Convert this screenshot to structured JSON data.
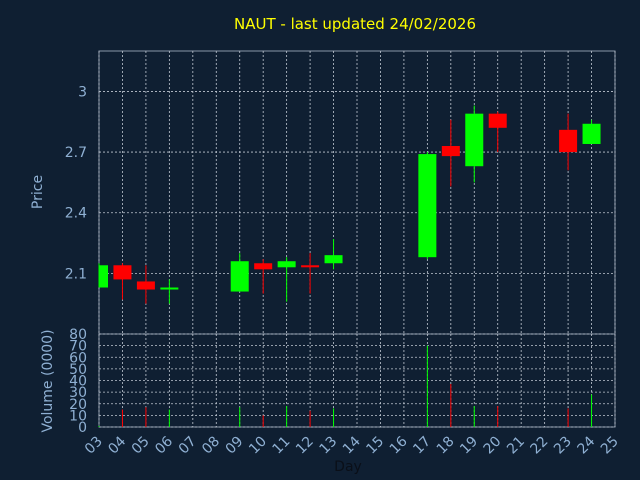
{
  "colors": {
    "background": "#0f1f32",
    "frame": "#8a97a8",
    "grid": "#c0c8d2",
    "title": "#ffff00",
    "axis_text": "#8fb0d3",
    "up": "#00ff00",
    "down": "#ff0000"
  },
  "chart_data": [
    {
      "type": "candlestick",
      "title": "NAUT - last updated 24/02/2026",
      "ylabel": "Price",
      "ylim": [
        1.8,
        3.2
      ],
      "yticks": [
        "2.1",
        "2.4",
        "2.7",
        "3"
      ],
      "grid": true,
      "x": [
        "03",
        "04",
        "05",
        "06",
        "07",
        "08",
        "09",
        "10",
        "11",
        "12",
        "13",
        "14",
        "15",
        "16",
        "17",
        "18",
        "19",
        "20",
        "21",
        "22",
        "23",
        "24",
        "25"
      ],
      "candles": [
        {
          "day": "03",
          "open": 2.03,
          "high": 2.15,
          "low": 2.03,
          "close": 2.14
        },
        {
          "day": "04",
          "open": 2.14,
          "high": 2.15,
          "low": 1.97,
          "close": 2.07
        },
        {
          "day": "05",
          "open": 2.06,
          "high": 2.14,
          "low": 1.95,
          "close": 2.02
        },
        {
          "day": "06",
          "open": 2.02,
          "high": 2.07,
          "low": 1.95,
          "close": 2.03
        },
        {
          "day": "09",
          "open": 2.01,
          "high": 2.2,
          "low": 2.01,
          "close": 2.16
        },
        {
          "day": "10",
          "open": 2.15,
          "high": 2.17,
          "low": 2.0,
          "close": 2.12
        },
        {
          "day": "11",
          "open": 2.13,
          "high": 2.18,
          "low": 1.96,
          "close": 2.16
        },
        {
          "day": "12",
          "open": 2.14,
          "high": 2.2,
          "low": 2.0,
          "close": 2.13
        },
        {
          "day": "13",
          "open": 2.15,
          "high": 2.27,
          "low": 2.12,
          "close": 2.19
        },
        {
          "day": "17",
          "open": 2.18,
          "high": 2.7,
          "low": 2.17,
          "close": 2.69
        },
        {
          "day": "18",
          "open": 2.73,
          "high": 2.86,
          "low": 2.53,
          "close": 2.68
        },
        {
          "day": "19",
          "open": 2.63,
          "high": 2.93,
          "low": 2.55,
          "close": 2.89
        },
        {
          "day": "20",
          "open": 2.89,
          "high": 2.9,
          "low": 2.7,
          "close": 2.82
        },
        {
          "day": "23",
          "open": 2.81,
          "high": 2.89,
          "low": 2.61,
          "close": 2.7
        },
        {
          "day": "24",
          "open": 2.74,
          "high": 2.86,
          "low": 2.74,
          "close": 2.84
        }
      ]
    },
    {
      "type": "bar",
      "ylabel": "Volume (0000)",
      "xlabel": "Day",
      "ylim": [
        0,
        80
      ],
      "yticks": [
        "0",
        "10",
        "20",
        "30",
        "40",
        "50",
        "60",
        "70",
        "80"
      ],
      "grid": true,
      "categories": [
        "03",
        "04",
        "05",
        "06",
        "09",
        "10",
        "11",
        "12",
        "13",
        "17",
        "18",
        "19",
        "20",
        "23",
        "24"
      ],
      "values": [
        1,
        15,
        17,
        15,
        17,
        10,
        18,
        14,
        16,
        70,
        37,
        18,
        18,
        16,
        28
      ]
    }
  ]
}
